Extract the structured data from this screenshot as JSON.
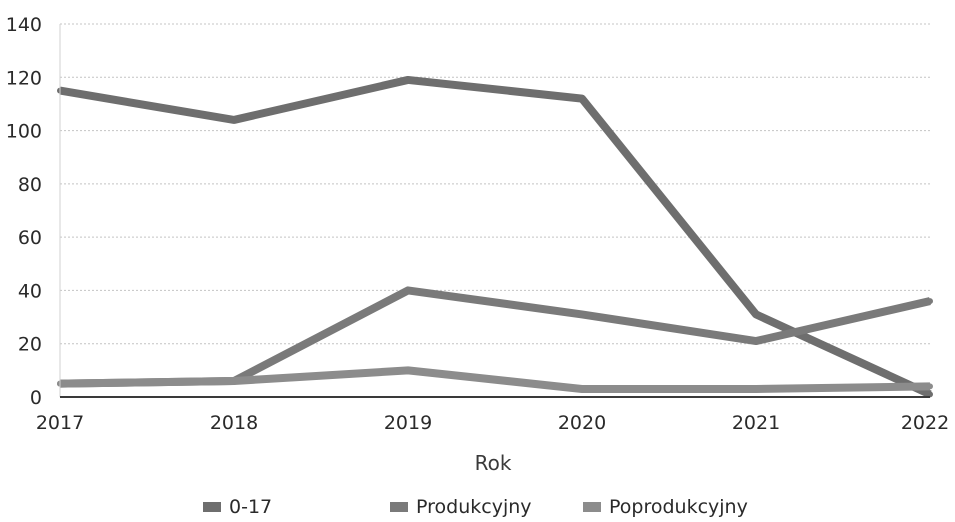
{
  "chart_data": {
    "type": "line",
    "x": [
      "2017",
      "2018",
      "2019",
      "2020",
      "2021",
      "2022"
    ],
    "series": [
      {
        "name": "0-17",
        "values": [
          115,
          104,
          119,
          112,
          31,
          1
        ],
        "color": "#6e6e6e"
      },
      {
        "name": "Produkcyjny",
        "values": [
          5,
          6,
          40,
          31,
          21,
          36
        ],
        "color": "#7a7a7a"
      },
      {
        "name": "Poprodukcyjny",
        "values": [
          5,
          6,
          10,
          3,
          3,
          4
        ],
        "color": "#8c8c8c"
      }
    ],
    "xlabel": "Rok",
    "ylabel": "",
    "ylim": [
      0,
      140
    ],
    "yticks": [
      "0",
      "20",
      "40",
      "60",
      "80",
      "100",
      "120",
      "140"
    ],
    "grid": true,
    "legend_position": "bottom"
  }
}
